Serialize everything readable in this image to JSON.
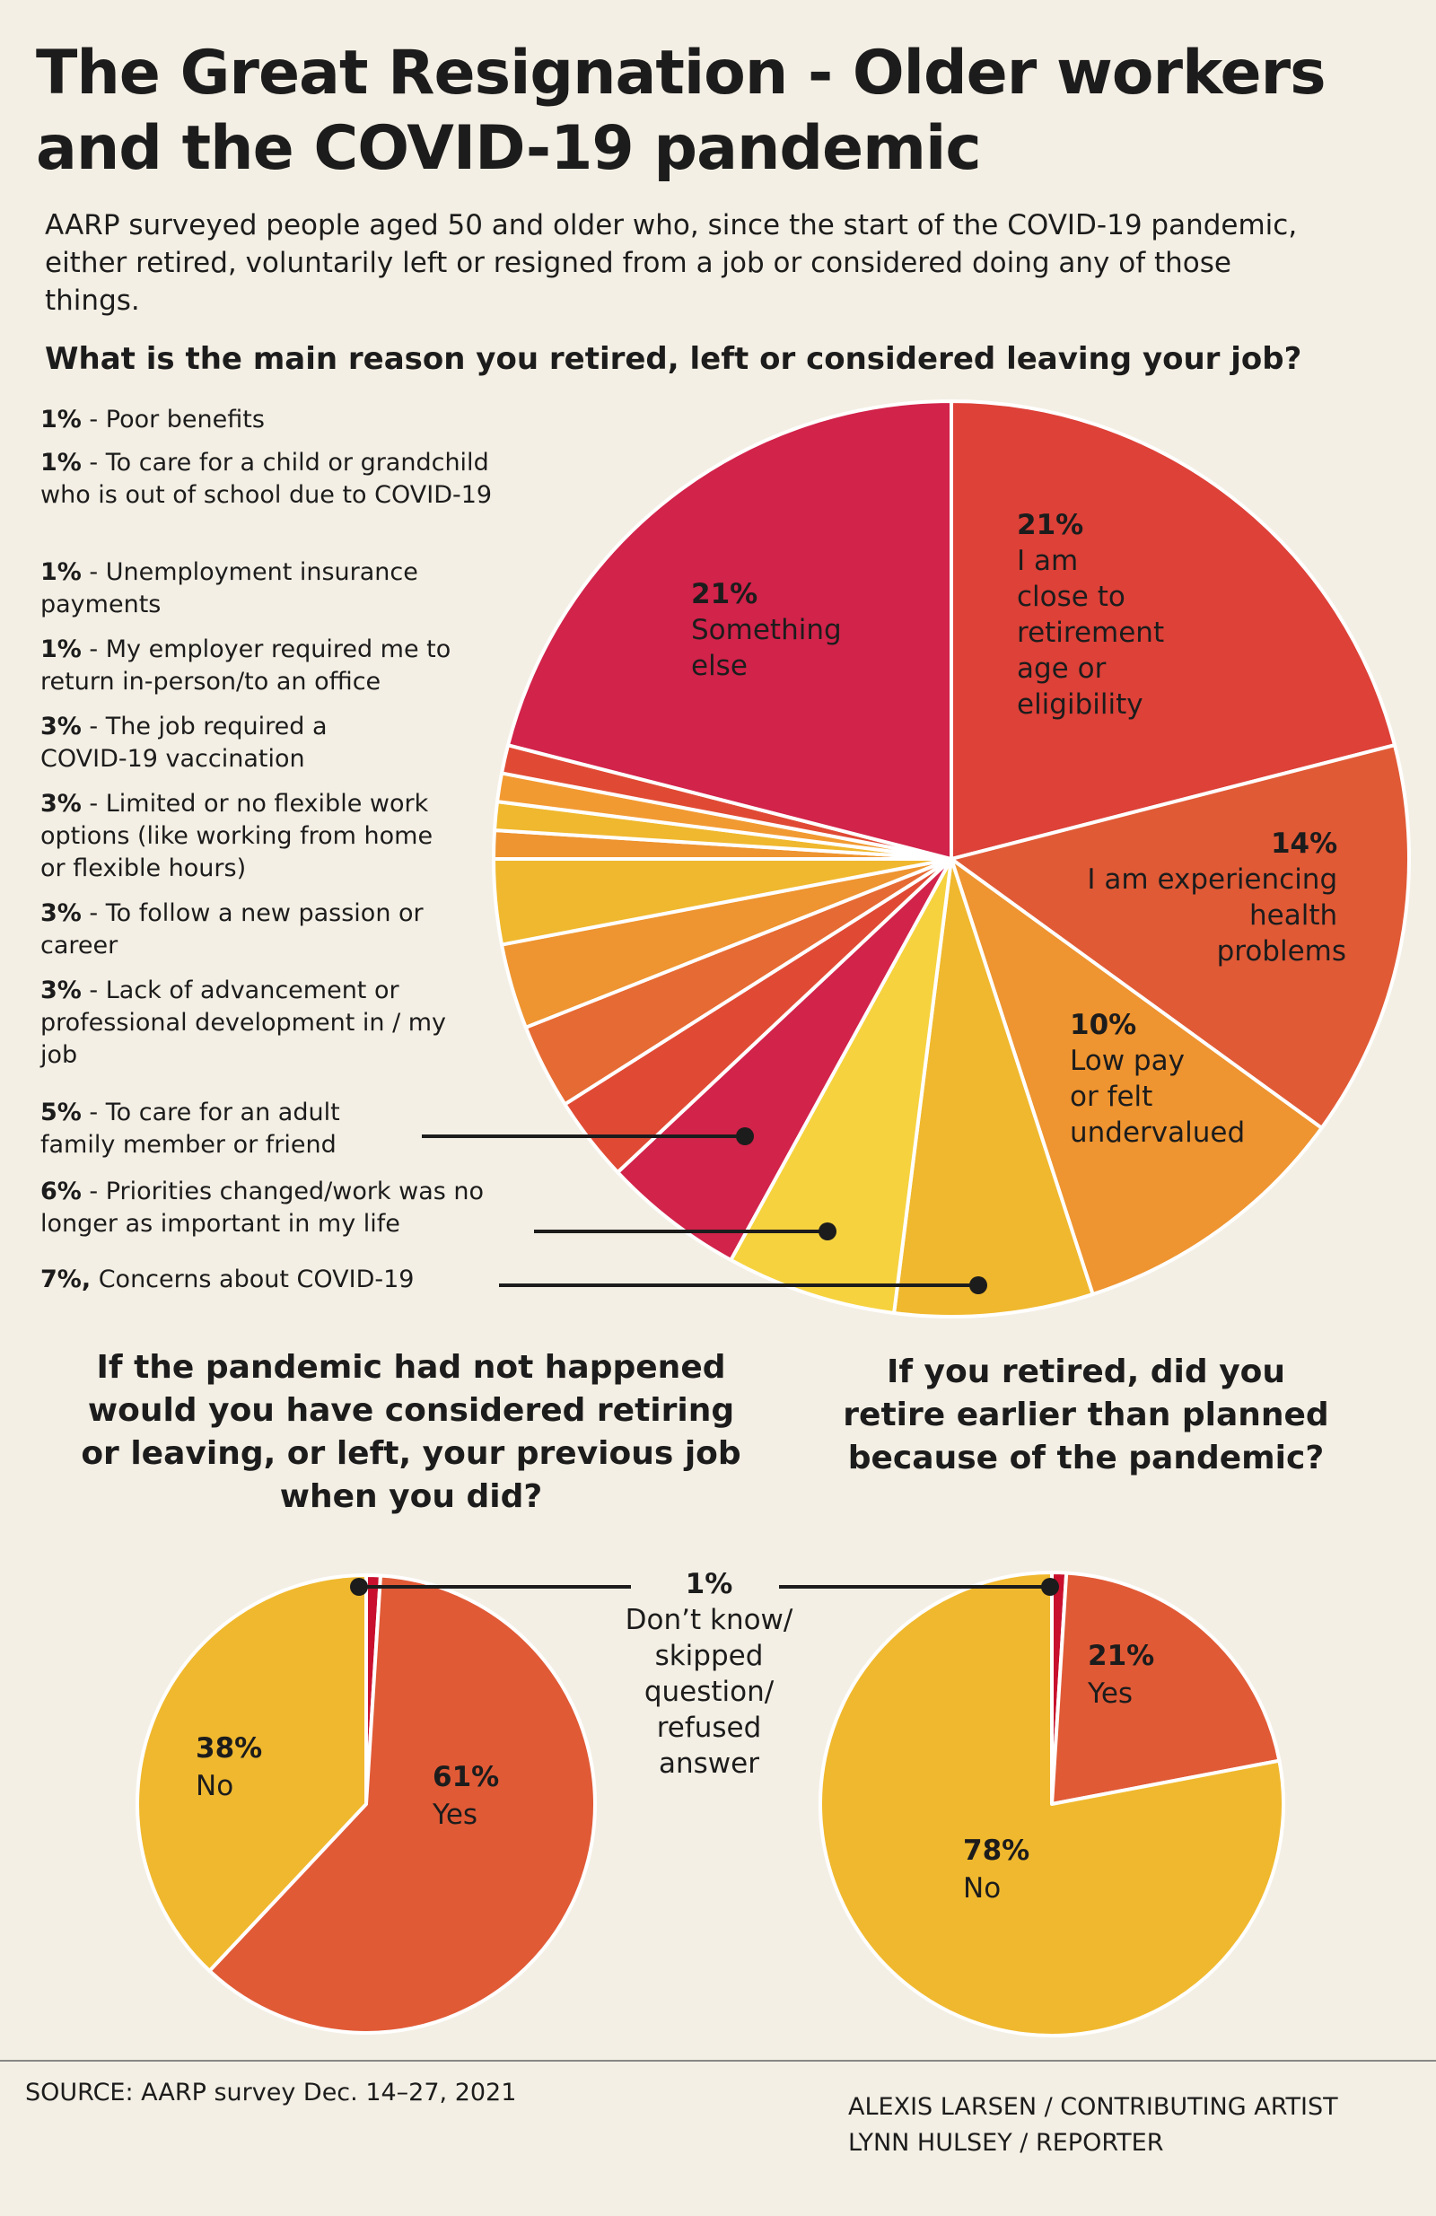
{
  "title": "The Great Resignation - Older workers and the COVID-19 pandemic",
  "intro": "AARP surveyed people aged 50 and older who, since the start of the COVID-19 pandemic, either retired, voluntarily left or resigned from a job or considered doing any of those things.",
  "main_question": "What is the main reason you retired, left or considered leaving your job?",
  "legend": [
    {
      "pct": "1%",
      "text": " - Poor benefits"
    },
    {
      "pct": "1%",
      "text": " -  To care for a child or grandchild who is out of school due to COVID-19"
    },
    {
      "pct": "1%",
      "text": " -  Unemployment insurance payments"
    },
    {
      "pct": "1%",
      "text": " -  My employer required me to return in-person/to an office"
    },
    {
      "pct": "3%",
      "text": " - The job required a COVID-19 vaccination"
    },
    {
      "pct": "3%",
      "text": " -  Limited or no flexible work options (like working from home or flexible hours)"
    },
    {
      "pct": "3%",
      "text": " - To follow a new passion or career"
    },
    {
      "pct": "3%",
      "text": " -  Lack of advancement or professional development in / my job"
    },
    {
      "pct": "5%",
      "text": " - To care for an adult family member or friend"
    },
    {
      "pct": "6%",
      "text": " - Priorities changed/work was no longer as important in my life"
    },
    {
      "pct": "7%,",
      "text": " Concerns  about  COVID-19"
    }
  ],
  "slice_labels": {
    "close_to_retirement": {
      "pct": "21%",
      "lines": [
        "I am",
        "close to",
        "retirement",
        "age or",
        "eligibility"
      ]
    },
    "health": {
      "pct": "14%",
      "lines": [
        "I am experiencing",
        "health",
        "problems"
      ]
    },
    "low_pay": {
      "pct": "10%",
      "lines": [
        "Low pay",
        "or felt",
        "undervalued"
      ]
    },
    "something_else": {
      "pct": "21%",
      "lines": [
        "Something",
        "else"
      ]
    }
  },
  "q_left": "If the pandemic had not happened would you have considered retiring or leaving, or left, your previous job when you did?",
  "q_right": "If you retired, did you retire earlier than planned because of the pandemic?",
  "left_labels": {
    "no_pct": "38%",
    "no": "No",
    "yes_pct": "61%",
    "yes": "Yes"
  },
  "right_labels": {
    "yes_pct": "21%",
    "yes": "Yes",
    "no_pct": "78%",
    "no": "No"
  },
  "dont_know": {
    "pct": "1%",
    "text": "Don’t know/ skipped question/ refused answer"
  },
  "source": "SOURCE: AARP survey Dec. 14–27, 2021",
  "credit_artist": "ALEXIS LARSEN / CONTRIBUTING ARTIST",
  "credit_reporter": "LYNN HULSEY / REPORTER",
  "colors": {
    "background": "#f4efe4",
    "crimson": "#d2234a",
    "red": "#dd4a3c",
    "red_orange": "#e05a36",
    "orange": "#ee9430",
    "gold": "#f0b82e",
    "yellow": "#f6d23e",
    "text": "#1c1c1c"
  },
  "chart_data": [
    {
      "type": "pie",
      "title": "What is the main reason you retired, left or considered leaving your job?",
      "slices": [
        {
          "label": "I am close to retirement age or eligibility",
          "value": 21,
          "color": "#dd4138"
        },
        {
          "label": "I am experiencing health problems",
          "value": 14,
          "color": "#e05a36"
        },
        {
          "label": "Low pay or felt undervalued",
          "value": 10,
          "color": "#ee9430"
        },
        {
          "label": "Concerns about COVID-19",
          "value": 7,
          "color": "#f0b82e"
        },
        {
          "label": "Priorities changed/work was no longer as important in my life",
          "value": 6,
          "color": "#f6d23e"
        },
        {
          "label": "To care for an adult family member or friend",
          "value": 5,
          "color": "#d2234a"
        },
        {
          "label": "Lack of advancement or professional development in / my job",
          "value": 3,
          "color": "#e04a34"
        },
        {
          "label": "To follow a new passion or career",
          "value": 3,
          "color": "#e66a33"
        },
        {
          "label": "Limited or no flexible work options (like working from home or flexible hours)",
          "value": 3,
          "color": "#ee9430"
        },
        {
          "label": "The job required a COVID-19 vaccination",
          "value": 3,
          "color": "#f0b82e"
        },
        {
          "label": "My employer required me to return in-person/to an office",
          "value": 1,
          "color": "#ee9430"
        },
        {
          "label": "Unemployment insurance payments",
          "value": 1,
          "color": "#f0b82e"
        },
        {
          "label": "To care for a child or grandchild who is out of school due to COVID-19",
          "value": 1,
          "color": "#f29a32"
        },
        {
          "label": "Poor benefits",
          "value": 1,
          "color": "#e04a34"
        },
        {
          "label": "Something else",
          "value": 21,
          "color": "#d2234a"
        }
      ]
    },
    {
      "type": "pie",
      "title": "If the pandemic had not happened would you have considered retiring or leaving, or left, your previous job when you did?",
      "slices": [
        {
          "label": "Don't know/skipped question/refused answer",
          "value": 1,
          "color": "#c8102e"
        },
        {
          "label": "Yes",
          "value": 61,
          "color": "#e05a36"
        },
        {
          "label": "No",
          "value": 38,
          "color": "#f0b82e"
        }
      ]
    },
    {
      "type": "pie",
      "title": "If you retired, did you retire earlier than planned because of the pandemic?",
      "slices": [
        {
          "label": "Don't know/skipped question/refused answer",
          "value": 1,
          "color": "#c8102e"
        },
        {
          "label": "Yes",
          "value": 21,
          "color": "#e05a36"
        },
        {
          "label": "No",
          "value": 78,
          "color": "#f0b82e"
        }
      ]
    }
  ]
}
